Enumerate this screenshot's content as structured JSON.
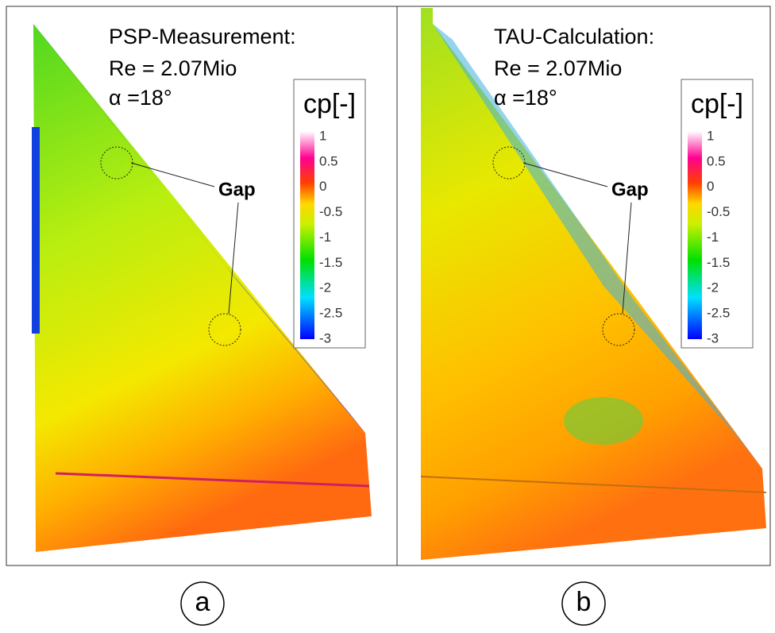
{
  "panels": [
    {
      "title": "PSP-Measurement:",
      "re": "Re = 2.07Mio",
      "alpha": "α =18°",
      "annotation": "Gap",
      "label": "a",
      "colorbar": {
        "title": "cp[-]",
        "ticks": [
          1,
          0.5,
          0,
          -0.5,
          -1,
          -1.5,
          -2,
          -2.5,
          -3
        ]
      }
    },
    {
      "title": "TAU-Calculation:",
      "re": "Re = 2.07Mio",
      "alpha": "α =18°",
      "annotation": "Gap",
      "label": "b",
      "colorbar": {
        "title": "cp[-]",
        "ticks": [
          1,
          0.5,
          0,
          -0.5,
          -1,
          -1.5,
          -2,
          -2.5,
          -3
        ]
      }
    }
  ]
}
